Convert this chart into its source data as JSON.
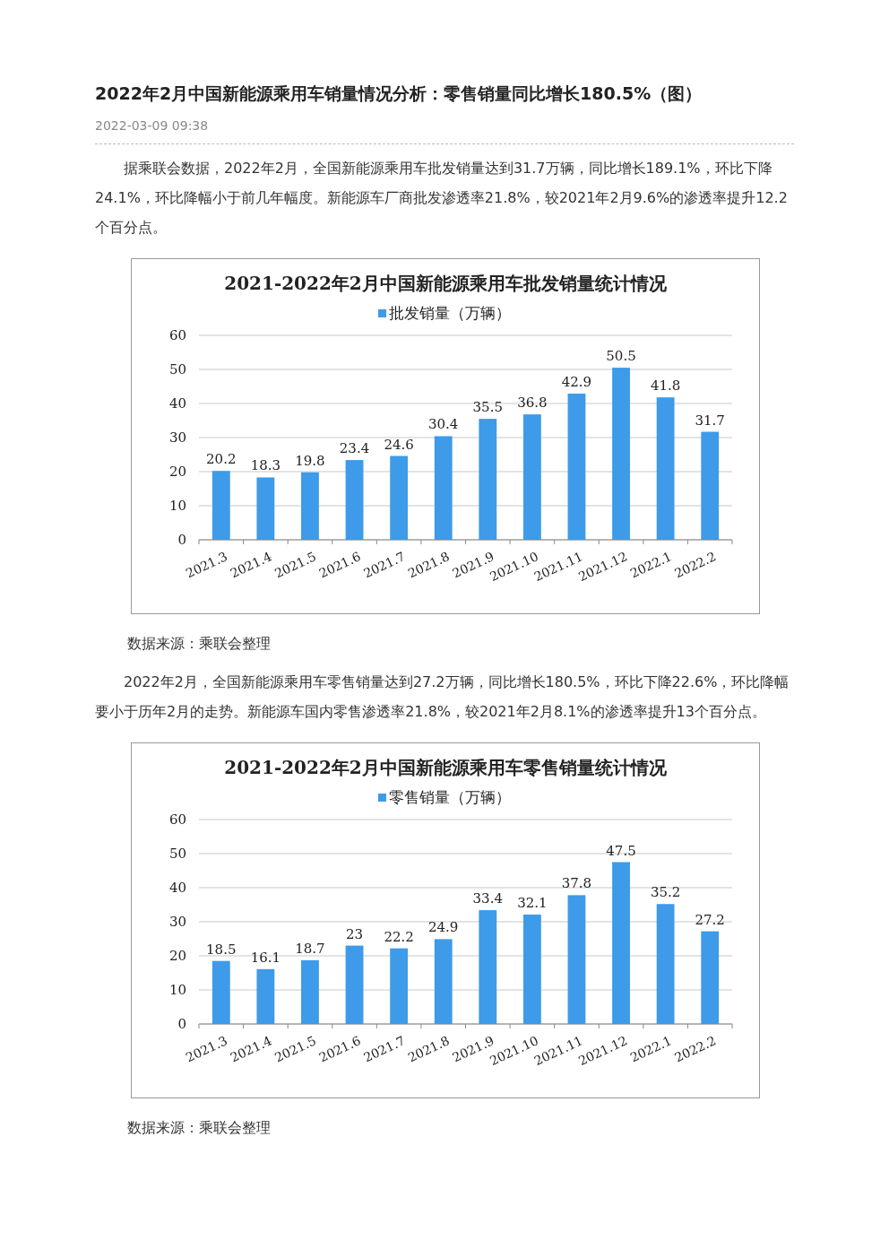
{
  "chart_data": [
    {
      "type": "bar",
      "title": "2021-2022年2月中国新能源乘用车批发销量统计情况",
      "annotations": [
        "2022年2月中国新能源乘用车销量情况分析：零售销量同比增长180.5%（图）",
        "2022-03-09 09:38",
        "据乘联会数据，2022年2月，全国新能源乘用车批发销量达到31.7万辆，同比增长189.1%，环比下降24.1%，环比降幅小于前几年幅度。新能源车厂商批发渗透率21.8%，较2021年2月9.6%的渗透率提升12.2个百分点。",
        "数据来源：乘联会整理"
      ],
      "categories": [
        "2021.3",
        "2021.4",
        "2021.5",
        "2021.6",
        "2021.7",
        "2021.8",
        "2021.9",
        "2021.10",
        "2021.11",
        "2021.12",
        "2022.1",
        "2022.2"
      ],
      "series": [
        {
          "name": "批发销量（万辆）",
          "color": "#3d9be9",
          "values": [
            20.2,
            18.3,
            19.8,
            23.4,
            24.6,
            30.4,
            35.5,
            36.8,
            42.9,
            50.5,
            41.8,
            31.7
          ]
        }
      ],
      "ylim": [
        0,
        60
      ],
      "yticks": [
        0,
        10,
        20,
        30,
        40,
        50,
        60
      ],
      "grid": "y",
      "legend": "top",
      "data_labels": true
    },
    {
      "type": "bar",
      "title": "2021-2022年2月中国新能源乘用车零售销量统计情况",
      "annotations": [
        "2022年2月，全国新能源乘用车零售销量达到27.2万辆，同比增长180.5%，环比下降22.6%，环比降幅要小于历年2月的走势。新能源车国内零售渗透率21.8%，较2021年2月8.1%的渗透率提升13个百分点。",
        "数据来源：乘联会整理"
      ],
      "categories": [
        "2021.3",
        "2021.4",
        "2021.5",
        "2021.6",
        "2021.7",
        "2021.8",
        "2021.9",
        "2021.10",
        "2021.11",
        "2021.12",
        "2022.1",
        "2022.2"
      ],
      "series": [
        {
          "name": "零售销量（万辆）",
          "color": "#3d9be9",
          "values": [
            18.5,
            16.1,
            18.7,
            23,
            22.2,
            24.9,
            33.4,
            32.1,
            37.8,
            47.5,
            35.2,
            27.2
          ]
        }
      ],
      "ylim": [
        0,
        60
      ],
      "yticks": [
        0,
        10,
        20,
        30,
        40,
        50,
        60
      ],
      "grid": "y",
      "legend": "top",
      "data_labels": true
    }
  ]
}
